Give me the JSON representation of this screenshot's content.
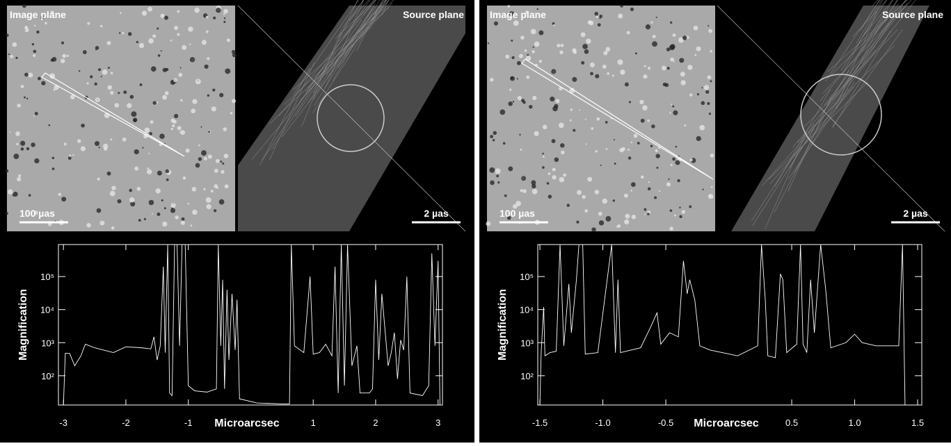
{
  "panels": [
    {
      "image_plane": {
        "label": "Image plane",
        "scale": "100 µas"
      },
      "source_plane": {
        "label": "Source plane",
        "scale": "2 µas"
      }
    },
    {
      "image_plane": {
        "label": "Image plane",
        "scale": "100 µas"
      },
      "source_plane": {
        "label": "Source plane",
        "scale": "2 µas"
      }
    }
  ],
  "chart_data": [
    {
      "type": "line",
      "xlabel": "Microarcsec",
      "ylabel": "Magnification",
      "color": "#ffffff",
      "log_y": true,
      "xlim": [
        -3.08,
        3.07
      ],
      "xticks": [
        -3,
        -2,
        -1,
        1,
        2,
        3
      ],
      "ylim": [
        13,
        930000
      ],
      "yticks": [
        {
          "value": 100,
          "label": "10²"
        },
        {
          "value": 1000,
          "label": "10³"
        },
        {
          "value": 10000,
          "label": "10⁴"
        },
        {
          "value": 100000,
          "label": "10⁵"
        }
      ],
      "x": [
        -3.0,
        -2.97,
        -2.9,
        -2.82,
        -2.72,
        -2.65,
        -2.5,
        -2.2,
        -2.0,
        -1.75,
        -1.6,
        -1.55,
        -1.5,
        -1.45,
        -1.4,
        -1.37,
        -1.33,
        -1.3,
        -1.26,
        -1.22,
        -1.18,
        -1.14,
        -1.1,
        -1.05,
        -1.0,
        -0.9,
        -0.7,
        -0.55,
        -0.52,
        -0.48,
        -0.45,
        -0.42,
        -0.38,
        -0.35,
        -0.3,
        -0.25,
        -0.22,
        -0.18,
        0.1,
        0.5,
        0.62,
        0.65,
        0.7,
        0.85,
        0.95,
        1.0,
        1.1,
        1.2,
        1.3,
        1.35,
        1.4,
        1.45,
        1.5,
        1.55,
        1.62,
        1.7,
        1.75,
        1.9,
        1.95,
        2.0,
        2.05,
        2.1,
        2.2,
        2.25,
        2.3,
        2.35,
        2.4,
        2.45,
        2.5,
        2.55,
        2.75,
        2.85,
        2.9,
        2.95,
        3.0,
        3.03
      ],
      "values": [
        13,
        480,
        470,
        200,
        400,
        900,
        700,
        500,
        750,
        700,
        650,
        1500,
        300,
        800,
        200000,
        500,
        930000,
        30,
        25,
        930000,
        930000,
        800,
        930000,
        930000,
        50,
        35,
        32,
        40,
        930000,
        800,
        80000,
        40,
        40000,
        300,
        30000,
        600,
        20000,
        20,
        15,
        14,
        14,
        930000,
        800,
        500,
        100000,
        450,
        500,
        900,
        400,
        200000,
        30,
        930000,
        50,
        930000,
        200,
        800,
        30,
        30,
        40,
        80000,
        300,
        30000,
        200,
        500,
        2000,
        80,
        1200,
        600,
        100000,
        30,
        25,
        50,
        500000,
        800,
        300000,
        13
      ]
    },
    {
      "type": "line",
      "xlabel": "Microarcsec",
      "ylabel": "Magnification",
      "color": "#ffffff",
      "log_y": true,
      "xlim": [
        -1.517,
        1.533
      ],
      "xticks": [
        -1.5,
        {
          "value": -1,
          "label": "-1.0"
        },
        -0.5,
        0.5,
        {
          "value": 1,
          "label": "1.0"
        },
        1.5
      ],
      "ylim": [
        13,
        930000
      ],
      "yticks": [
        {
          "value": 100,
          "label": "10²"
        },
        {
          "value": 1000,
          "label": "10³"
        },
        {
          "value": 10000,
          "label": "10⁴"
        },
        {
          "value": 100000,
          "label": "10⁵"
        }
      ],
      "x": [
        -1.5,
        -1.49,
        -1.47,
        -1.46,
        -1.42,
        -1.37,
        -1.34,
        -1.31,
        -1.27,
        -1.25,
        -1.21,
        -1.19,
        -1.16,
        -1.14,
        -1.04,
        -0.93,
        -0.9,
        -0.88,
        -0.86,
        -0.7,
        -0.62,
        -0.57,
        -0.54,
        -0.47,
        -0.4,
        -0.36,
        -0.33,
        -0.31,
        -0.27,
        -0.23,
        -0.15,
        0.07,
        0.23,
        0.26,
        0.29,
        0.31,
        0.37,
        0.41,
        0.43,
        0.46,
        0.54,
        0.57,
        0.59,
        0.62,
        0.65,
        0.68,
        0.73,
        0.77,
        0.81,
        0.93,
        1.0,
        1.06,
        1.17,
        1.35,
        1.38,
        1.4
      ],
      "values": [
        13,
        500,
        12000,
        400,
        500,
        550,
        930000,
        800,
        60000,
        2000,
        80000,
        930000,
        930000,
        450,
        500,
        930000,
        500,
        80000,
        500,
        700,
        3000,
        8000,
        900,
        2000,
        1500,
        300000,
        30000,
        80000,
        20000,
        800,
        600,
        400,
        800,
        930000,
        20000,
        400,
        350,
        120000,
        80000,
        500,
        900,
        930000,
        900,
        500,
        80000,
        2000,
        930000,
        40000,
        700,
        1000,
        1800,
        1000,
        800,
        800,
        930000,
        13
      ]
    }
  ]
}
